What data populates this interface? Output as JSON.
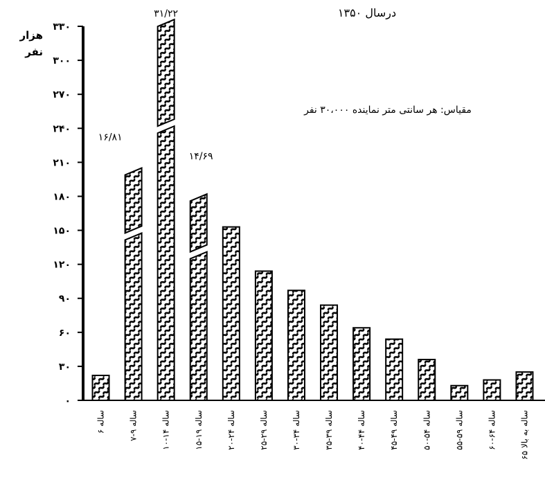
{
  "chart_data": {
    "type": "bar",
    "title": "درسال ۱۳۵۰",
    "annotation": "مقیاس: هر سانتی متر نماینده ۳۰،۰۰۰ نفر",
    "ylabel_line1": "هزار",
    "ylabel_line2": "نفر",
    "ylim": [
      0,
      330
    ],
    "yticks": [
      0,
      30,
      60,
      90,
      120,
      150,
      180,
      210,
      240,
      270,
      300,
      330
    ],
    "ytick_labels": [
      "۰",
      "۳۰",
      "۶۰",
      "۹۰",
      "۱۲۰",
      "۱۵۰",
      "۱۸۰",
      "۲۱۰",
      "۲۴۰",
      "۲۷۰",
      "۳۰۰",
      "۳۳۰"
    ],
    "categories": [
      "۶ ساله",
      "۷-۹ ساله",
      "۱۰-۱۴ ساله",
      "۱۵-۱۹ ساله",
      "۲۰-۲۴ ساله",
      "۲۵-۲۹ ساله",
      "۳۰-۳۴ ساله",
      "۳۵-۳۹ ساله",
      "۴۰-۴۴ ساله",
      "۴۵-۴۹ ساله",
      "۵۰-۵۴ ساله",
      "۵۵-۵۹ ساله",
      "۶۰-۶۴ ساله",
      "۶۵ ساله به بالا"
    ],
    "values": [
      22,
      205,
      336,
      182,
      153,
      114,
      97,
      84,
      64,
      54,
      36,
      13,
      18,
      25
    ],
    "bar_labels": [
      "",
      "۱۶/۸۱",
      "۳۱/۲۲",
      "۱۴/۶۹",
      "",
      "",
      "",
      "",
      "",
      "",
      "",
      "",
      "",
      ""
    ],
    "broken_bars": [
      1,
      2,
      3
    ],
    "hatch_color": "#000000",
    "bar_fill": "#ffffff"
  }
}
